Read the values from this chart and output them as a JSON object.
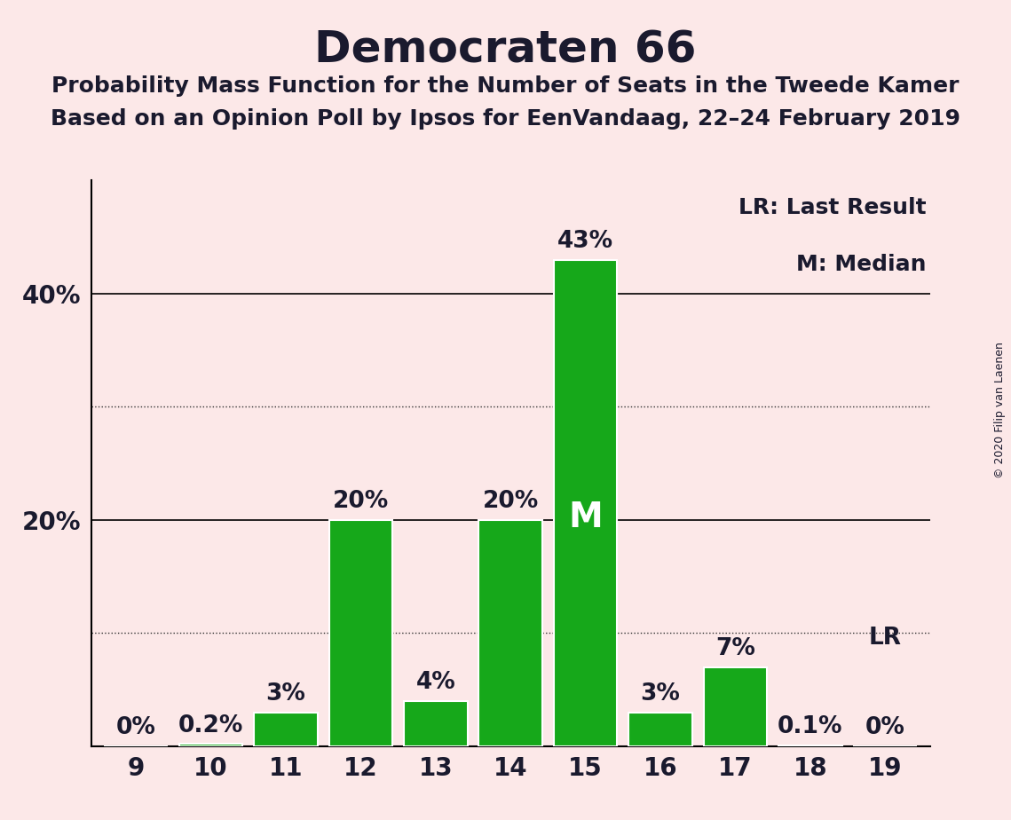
{
  "title": "Democraten 66",
  "subtitle1": "Probability Mass Function for the Number of Seats in the Tweede Kamer",
  "subtitle2": "Based on an Opinion Poll by Ipsos for EenVandaag, 22–24 February 2019",
  "copyright": "© 2020 Filip van Laenen",
  "categories": [
    9,
    10,
    11,
    12,
    13,
    14,
    15,
    16,
    17,
    18,
    19
  ],
  "values": [
    0.0,
    0.2,
    3.0,
    20.0,
    4.0,
    20.0,
    43.0,
    3.0,
    7.0,
    0.1,
    0.0
  ],
  "labels": [
    "0%",
    "0.2%",
    "3%",
    "20%",
    "4%",
    "20%",
    "43%",
    "3%",
    "7%",
    "0.1%",
    "0%"
  ],
  "bar_color": "#16a81a",
  "background_color": "#fce8e8",
  "text_color": "#1a1a2e",
  "ylim": [
    0,
    50
  ],
  "solid_gridlines": [
    20,
    40
  ],
  "dotted_gridlines": [
    10,
    30
  ],
  "median_bar": 15,
  "median_label": "M",
  "lr_bar": 19,
  "lr_label": "LR",
  "lr_bottom_label": "0%",
  "legend_lr": "LR: Last Result",
  "legend_m": "M: Median",
  "bar_width": 0.85,
  "label_fontsize": 19,
  "tick_fontsize": 20,
  "title_fontsize": 36,
  "subtitle_fontsize": 18,
  "legend_fontsize": 18,
  "median_fontsize": 28
}
